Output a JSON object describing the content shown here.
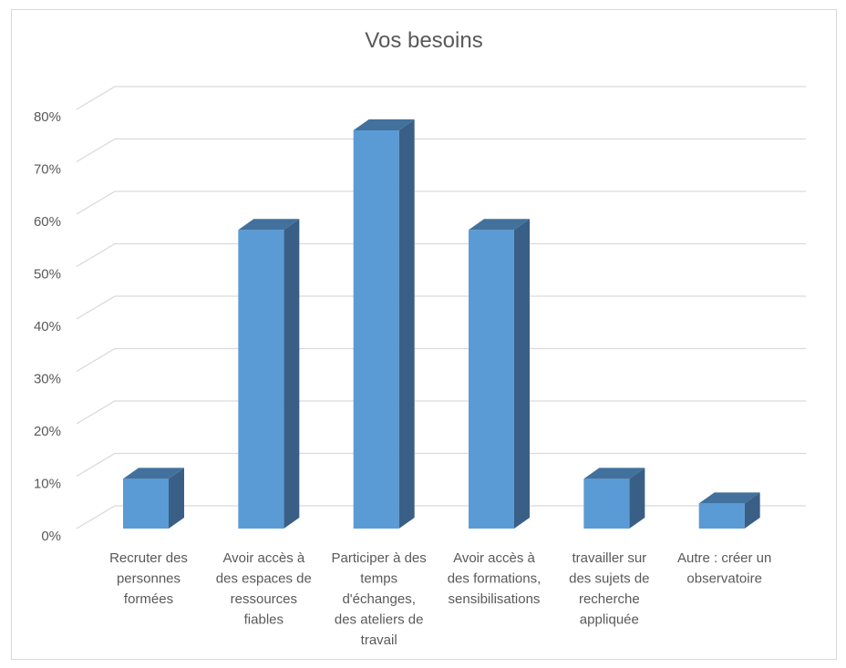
{
  "chart_data": {
    "type": "bar",
    "style": "3d-column",
    "title": "Vos besoins",
    "xlabel": "",
    "ylabel": "",
    "ylim": [
      0,
      0.8
    ],
    "y_ticks": [
      "0%",
      "10%",
      "20%",
      "30%",
      "40%",
      "50%",
      "60%",
      "70%",
      "80%"
    ],
    "grid": true,
    "legend": "none",
    "categories": [
      [
        "Recruter des",
        "personnes",
        "formées"
      ],
      [
        "Avoir accès à",
        "des espaces de",
        "ressources",
        "fiables"
      ],
      [
        "Participer à des",
        "temps",
        "d'échanges,",
        "des ateliers de",
        "travail"
      ],
      [
        "Avoir accès à",
        "des formations,",
        "sensibilisations"
      ],
      [
        "travailler sur",
        "des sujets de",
        "recherche",
        "appliquée"
      ],
      [
        "Autre : créer un",
        "observatoire"
      ]
    ],
    "values": [
      0.095,
      0.57,
      0.76,
      0.57,
      0.095,
      0.048
    ],
    "colors": {
      "front": "#5b9bd5",
      "top": "#41719c",
      "side": "#3a5f86",
      "grid": "#d9d9d9",
      "text": "#595959"
    }
  }
}
